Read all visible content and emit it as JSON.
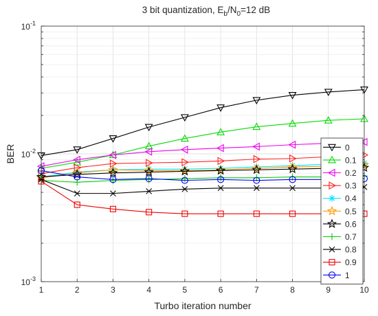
{
  "chart_data": {
    "type": "line",
    "title_parts": {
      "lead": "3 bit quantization, E",
      "sub1": "b",
      "mid": "/N",
      "sub2": "0",
      "tail": "=12 dB"
    },
    "xlabel": "Turbo iteration number",
    "ylabel": "BER",
    "y_scale": "log",
    "xlim": [
      1,
      10
    ],
    "ylim": [
      0.001,
      0.1
    ],
    "x_ticks": [
      "1",
      "2",
      "3",
      "4",
      "5",
      "6",
      "7",
      "8",
      "9",
      "10"
    ],
    "y_ticks": [
      {
        "value": 0.001,
        "base": "10",
        "exp": "-3"
      },
      {
        "value": 0.01,
        "base": "10",
        "exp": "-2"
      },
      {
        "value": 0.1,
        "base": "10",
        "exp": "-1"
      }
    ],
    "grid": true,
    "legend_position": "bottom-right",
    "x": [
      1,
      2,
      3,
      4,
      5,
      6,
      7,
      8,
      9,
      10
    ],
    "series": [
      {
        "name": "0",
        "color": "#000000",
        "marker": "triangle-down",
        "values": [
          0.0097,
          0.0108,
          0.0132,
          0.0162,
          0.0193,
          0.023,
          0.0263,
          0.0288,
          0.0305,
          0.0318
        ]
      },
      {
        "name": "0.1",
        "color": "#00dd00",
        "marker": "triangle-up",
        "values": [
          0.0077,
          0.0086,
          0.0098,
          0.0115,
          0.0132,
          0.0148,
          0.0163,
          0.0173,
          0.0183,
          0.0188
        ]
      },
      {
        "name": "0.2",
        "color": "#ee00ee",
        "marker": "triangle-left",
        "values": [
          0.008,
          0.009,
          0.0098,
          0.0104,
          0.0108,
          0.0111,
          0.0114,
          0.0118,
          0.0121,
          0.0124
        ]
      },
      {
        "name": "0.3",
        "color": "#ff2222",
        "marker": "triangle-right",
        "values": [
          0.007,
          0.0078,
          0.0084,
          0.0085,
          0.0086,
          0.0088,
          0.0091,
          0.0092,
          0.0095,
          0.0098
        ]
      },
      {
        "name": "0.4",
        "color": "#00e5ff",
        "marker": "asterisk",
        "values": [
          0.0066,
          0.0072,
          0.0075,
          0.0076,
          0.0076,
          0.0077,
          0.0079,
          0.0081,
          0.0083,
          0.0085
        ]
      },
      {
        "name": "0.5",
        "color": "#ff9900",
        "marker": "star",
        "values": [
          0.0065,
          0.0071,
          0.0075,
          0.0074,
          0.0074,
          0.0075,
          0.0077,
          0.0079,
          0.008,
          0.0082
        ]
      },
      {
        "name": "0.6",
        "color": "#000000",
        "marker": "star",
        "values": [
          0.0066,
          0.0069,
          0.0071,
          0.0072,
          0.0073,
          0.0074,
          0.0075,
          0.0076,
          0.0077,
          0.0078
        ]
      },
      {
        "name": "0.7",
        "color": "#00cc00",
        "marker": "plus",
        "values": [
          0.0062,
          0.006,
          0.0062,
          0.0063,
          0.0064,
          0.0065,
          0.0065,
          0.0066,
          0.0066,
          0.0067
        ]
      },
      {
        "name": "0.8",
        "color": "#000000",
        "marker": "x",
        "values": [
          0.0063,
          0.0049,
          0.0049,
          0.0051,
          0.0053,
          0.0054,
          0.0054,
          0.0054,
          0.0054,
          0.0055
        ]
      },
      {
        "name": "0.9",
        "color": "#ee0000",
        "marker": "square",
        "values": [
          0.0061,
          0.004,
          0.0037,
          0.0035,
          0.0034,
          0.0034,
          0.0034,
          0.0034,
          0.0034,
          0.0034
        ]
      },
      {
        "name": "1",
        "color": "#0000ee",
        "marker": "circle",
        "values": [
          0.0074,
          0.0066,
          0.0063,
          0.0064,
          0.0062,
          0.0063,
          0.0062,
          0.0063,
          0.0063,
          0.0064
        ]
      }
    ]
  }
}
